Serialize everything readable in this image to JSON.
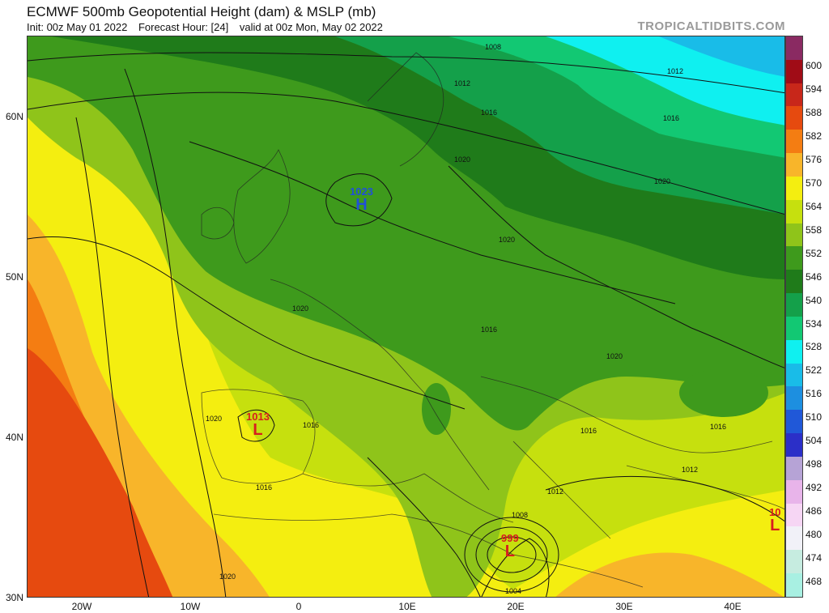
{
  "header": {
    "title": "ECMWF 500mb Geopotential Height (dam) & MSLP (mb)",
    "init": "Init: 00z May 01 2022",
    "forecast_hour": "Forecast Hour: [24]",
    "valid": "valid at 00z Mon, May 02 2022",
    "brand": "TROPICALTIDBITS.COM"
  },
  "axes": {
    "lat_labels": [
      "60N",
      "50N",
      "40N",
      "30N"
    ],
    "lon_labels": [
      "20W",
      "10W",
      "0",
      "10E",
      "20E",
      "30E",
      "40E"
    ]
  },
  "colorbar": {
    "levels": [
      "600",
      "594",
      "588",
      "582",
      "576",
      "570",
      "564",
      "558",
      "552",
      "546",
      "540",
      "534",
      "528",
      "522",
      "516",
      "510",
      "504",
      "498",
      "492",
      "486",
      "480",
      "474",
      "468"
    ],
    "colors": [
      "#8a2a62",
      "#a00c16",
      "#c8271a",
      "#e64a0f",
      "#f47d12",
      "#f8b52a",
      "#f4ee10",
      "#c6e00e",
      "#8fc41a",
      "#3e9a1c",
      "#1f7b1a",
      "#14a04a",
      "#12c873",
      "#0ff0f0",
      "#19bce8",
      "#1d8fe0",
      "#2058d8",
      "#2b2fc8",
      "#b6a3d6",
      "#e8b4ea",
      "#f6d6f4",
      "#f1f1f8",
      "#c6ece0",
      "#a8f0e2"
    ]
  },
  "pressure_centers": [
    {
      "name": "high-north-sea",
      "type": "H",
      "value": "1023",
      "color": "#2050d8"
    },
    {
      "name": "low-iberia",
      "type": "L",
      "value": "1013",
      "color": "#d81e1e"
    },
    {
      "name": "low-greece",
      "type": "L",
      "value": "999",
      "color": "#d81e1e"
    },
    {
      "name": "low-east-edge",
      "type": "L",
      "value": "10",
      "color": "#d81e1e"
    }
  ],
  "isobar_labels": [
    "1008",
    "1012",
    "1012",
    "1016",
    "1016",
    "1020",
    "1023",
    "1020",
    "1020",
    "1020",
    "1016",
    "1020",
    "1020",
    "1016",
    "1016",
    "1016",
    "1012",
    "1012",
    "1016",
    "1008",
    "1004",
    "1020"
  ]
}
